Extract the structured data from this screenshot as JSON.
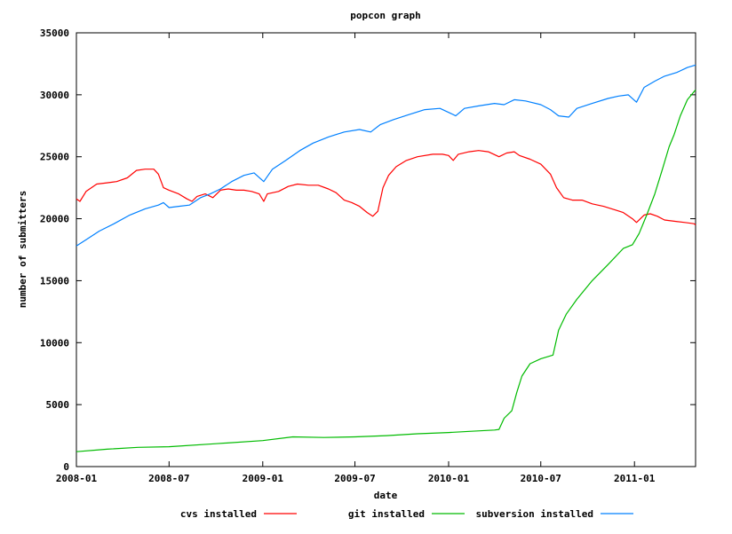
{
  "chart_data": {
    "type": "line",
    "title": "popcon graph",
    "xlabel": "date",
    "ylabel": "number of submitters",
    "ylim": [
      0,
      35000
    ],
    "xlim": [
      "2008-01",
      "2011-05"
    ],
    "x_ticks": [
      "2008-01",
      "2008-07",
      "2009-01",
      "2009-07",
      "2010-01",
      "2010-07",
      "2011-01"
    ],
    "y_ticks": [
      0,
      5000,
      10000,
      15000,
      20000,
      25000,
      30000,
      35000
    ],
    "grid": false,
    "legend_position": "bottom",
    "series": [
      {
        "name": "cvs installed",
        "color": "#ff0000",
        "points": [
          [
            "2008-01-01",
            21600
          ],
          [
            "2008-01-08",
            21400
          ],
          [
            "2008-01-20",
            22200
          ],
          [
            "2008-02-10",
            22800
          ],
          [
            "2008-03-01",
            22900
          ],
          [
            "2008-03-20",
            23000
          ],
          [
            "2008-04-10",
            23300
          ],
          [
            "2008-04-28",
            23900
          ],
          [
            "2008-05-15",
            24000
          ],
          [
            "2008-06-01",
            24000
          ],
          [
            "2008-06-10",
            23600
          ],
          [
            "2008-06-20",
            22500
          ],
          [
            "2008-07-01",
            22300
          ],
          [
            "2008-07-20",
            22000
          ],
          [
            "2008-08-05",
            21600
          ],
          [
            "2008-08-15",
            21400
          ],
          [
            "2008-08-25",
            21800
          ],
          [
            "2008-09-10",
            22000
          ],
          [
            "2008-09-25",
            21700
          ],
          [
            "2008-10-10",
            22300
          ],
          [
            "2008-10-25",
            22400
          ],
          [
            "2008-11-10",
            22300
          ],
          [
            "2008-11-25",
            22300
          ],
          [
            "2008-12-10",
            22200
          ],
          [
            "2008-12-25",
            22000
          ],
          [
            "2009-01-03",
            21400
          ],
          [
            "2009-01-10",
            22000
          ],
          [
            "2009-02-01",
            22200
          ],
          [
            "2009-02-20",
            22600
          ],
          [
            "2009-03-10",
            22800
          ],
          [
            "2009-04-01",
            22700
          ],
          [
            "2009-04-20",
            22700
          ],
          [
            "2009-05-10",
            22400
          ],
          [
            "2009-05-25",
            22100
          ],
          [
            "2009-06-10",
            21500
          ],
          [
            "2009-06-25",
            21300
          ],
          [
            "2009-07-10",
            21000
          ],
          [
            "2009-07-25",
            20500
          ],
          [
            "2009-08-05",
            20200
          ],
          [
            "2009-08-15",
            20600
          ],
          [
            "2009-08-25",
            22500
          ],
          [
            "2009-09-05",
            23500
          ],
          [
            "2009-09-20",
            24200
          ],
          [
            "2009-10-10",
            24700
          ],
          [
            "2009-11-01",
            25000
          ],
          [
            "2009-12-01",
            25200
          ],
          [
            "2009-12-20",
            25200
          ],
          [
            "2010-01-01",
            25100
          ],
          [
            "2010-01-10",
            24700
          ],
          [
            "2010-01-20",
            25200
          ],
          [
            "2010-02-10",
            25400
          ],
          [
            "2010-03-01",
            25500
          ],
          [
            "2010-03-20",
            25400
          ],
          [
            "2010-04-10",
            25000
          ],
          [
            "2010-04-25",
            25300
          ],
          [
            "2010-05-10",
            25400
          ],
          [
            "2010-05-20",
            25100
          ],
          [
            "2010-06-10",
            24800
          ],
          [
            "2010-07-01",
            24400
          ],
          [
            "2010-07-20",
            23600
          ],
          [
            "2010-08-01",
            22500
          ],
          [
            "2010-08-15",
            21700
          ],
          [
            "2010-09-01",
            21500
          ],
          [
            "2010-09-20",
            21500
          ],
          [
            "2010-10-10",
            21200
          ],
          [
            "2010-11-01",
            21000
          ],
          [
            "2010-11-25",
            20700
          ],
          [
            "2010-12-10",
            20500
          ],
          [
            "2010-12-28",
            20000
          ],
          [
            "2011-01-05",
            19700
          ],
          [
            "2011-01-20",
            20300
          ],
          [
            "2011-02-01",
            20400
          ],
          [
            "2011-02-15",
            20200
          ],
          [
            "2011-03-01",
            19900
          ],
          [
            "2011-03-20",
            19800
          ],
          [
            "2011-04-10",
            19700
          ],
          [
            "2011-04-28",
            19600
          ],
          [
            "2011-05-01",
            19500
          ]
        ]
      },
      {
        "name": "git installed",
        "color": "#00bb00",
        "points": [
          [
            "2008-01-01",
            1200
          ],
          [
            "2008-03-01",
            1400
          ],
          [
            "2008-05-01",
            1550
          ],
          [
            "2008-07-01",
            1600
          ],
          [
            "2008-10-01",
            1850
          ],
          [
            "2009-01-01",
            2100
          ],
          [
            "2009-03-01",
            2400
          ],
          [
            "2009-05-01",
            2350
          ],
          [
            "2009-07-01",
            2400
          ],
          [
            "2009-09-01",
            2500
          ],
          [
            "2009-11-01",
            2650
          ],
          [
            "2010-01-01",
            2750
          ],
          [
            "2010-02-15",
            2850
          ],
          [
            "2010-04-01",
            2950
          ],
          [
            "2010-04-10",
            3000
          ],
          [
            "2010-04-20",
            3900
          ],
          [
            "2010-05-05",
            4500
          ],
          [
            "2010-05-15",
            6000
          ],
          [
            "2010-05-25",
            7300
          ],
          [
            "2010-06-10",
            8300
          ],
          [
            "2010-07-01",
            8700
          ],
          [
            "2010-07-25",
            9000
          ],
          [
            "2010-08-05",
            11000
          ],
          [
            "2010-08-20",
            12300
          ],
          [
            "2010-09-10",
            13500
          ],
          [
            "2010-10-10",
            15000
          ],
          [
            "2010-11-10",
            16300
          ],
          [
            "2010-12-10",
            17600
          ],
          [
            "2010-12-28",
            17900
          ],
          [
            "2011-01-10",
            18800
          ],
          [
            "2011-01-25",
            20300
          ],
          [
            "2011-02-10",
            22000
          ],
          [
            "2011-02-25",
            24000
          ],
          [
            "2011-03-10",
            25800
          ],
          [
            "2011-03-20",
            26800
          ],
          [
            "2011-04-01",
            28300
          ],
          [
            "2011-04-15",
            29600
          ],
          [
            "2011-05-01",
            30400
          ]
        ]
      },
      {
        "name": "subversion installed",
        "color": "#0080ff",
        "points": [
          [
            "2008-01-01",
            17800
          ],
          [
            "2008-01-20",
            18300
          ],
          [
            "2008-02-15",
            19000
          ],
          [
            "2008-03-15",
            19600
          ],
          [
            "2008-04-15",
            20300
          ],
          [
            "2008-05-15",
            20800
          ],
          [
            "2008-06-10",
            21100
          ],
          [
            "2008-06-20",
            21300
          ],
          [
            "2008-07-01",
            20900
          ],
          [
            "2008-07-20",
            21000
          ],
          [
            "2008-08-10",
            21100
          ],
          [
            "2008-09-01",
            21700
          ],
          [
            "2008-09-20",
            22000
          ],
          [
            "2008-10-10",
            22400
          ],
          [
            "2008-11-01",
            23000
          ],
          [
            "2008-11-25",
            23500
          ],
          [
            "2008-12-15",
            23700
          ],
          [
            "2009-01-03",
            23000
          ],
          [
            "2009-01-20",
            24000
          ],
          [
            "2009-02-15",
            24700
          ],
          [
            "2009-03-15",
            25500
          ],
          [
            "2009-04-10",
            26100
          ],
          [
            "2009-05-10",
            26600
          ],
          [
            "2009-06-10",
            27000
          ],
          [
            "2009-07-10",
            27200
          ],
          [
            "2009-08-01",
            27000
          ],
          [
            "2009-08-20",
            27600
          ],
          [
            "2009-09-15",
            28000
          ],
          [
            "2009-10-15",
            28400
          ],
          [
            "2009-11-15",
            28800
          ],
          [
            "2009-12-15",
            28900
          ],
          [
            "2010-01-05",
            28500
          ],
          [
            "2010-01-15",
            28300
          ],
          [
            "2010-02-01",
            28900
          ],
          [
            "2010-03-01",
            29100
          ],
          [
            "2010-04-01",
            29300
          ],
          [
            "2010-04-20",
            29200
          ],
          [
            "2010-05-10",
            29600
          ],
          [
            "2010-06-01",
            29500
          ],
          [
            "2010-07-01",
            29200
          ],
          [
            "2010-07-20",
            28800
          ],
          [
            "2010-08-05",
            28300
          ],
          [
            "2010-08-25",
            28200
          ],
          [
            "2010-09-10",
            28900
          ],
          [
            "2010-10-10",
            29300
          ],
          [
            "2010-11-10",
            29700
          ],
          [
            "2010-12-01",
            29900
          ],
          [
            "2010-12-20",
            30000
          ],
          [
            "2011-01-05",
            29400
          ],
          [
            "2011-01-20",
            30600
          ],
          [
            "2011-02-10",
            31100
          ],
          [
            "2011-03-01",
            31500
          ],
          [
            "2011-03-25",
            31800
          ],
          [
            "2011-04-15",
            32200
          ],
          [
            "2011-05-01",
            32400
          ]
        ]
      }
    ]
  }
}
